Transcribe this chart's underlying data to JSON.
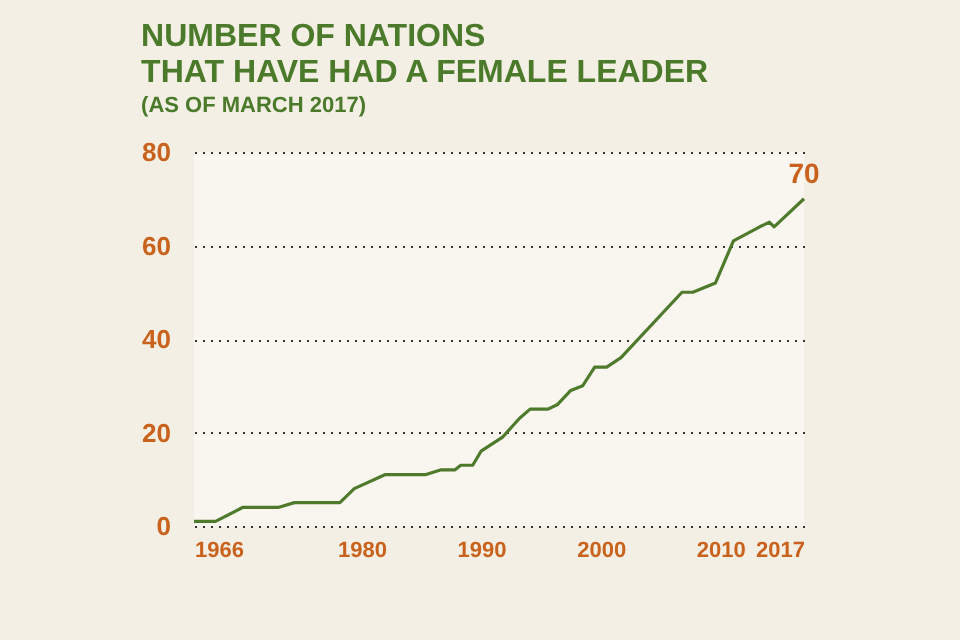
{
  "chart_data": {
    "type": "line",
    "title": "NUMBER OF NATIONS\nTHAT HAVE HAD A FEMALE LEADER",
    "subtitle": "(AS OF MARCH 2017)",
    "x": [
      1966,
      1967.8,
      1970.1,
      1973.1,
      1974.4,
      1978.2,
      1979.4,
      1982,
      1985.4,
      1986.6,
      1987.8,
      1988.3,
      1989.3,
      1990,
      1991.8,
      1993.2,
      1994.1,
      1995.6,
      1996.4,
      1997.5,
      1998.5,
      1999.5,
      2000.5,
      2001.7,
      2006.8,
      2007.7,
      2009.6,
      2011.1,
      2013.3,
      2014.1,
      2014.5,
      2017
    ],
    "series": [
      {
        "color": "#4f7a2c",
        "values": [
          1,
          1,
          4,
          4,
          5,
          5,
          8,
          11,
          11,
          12,
          12,
          13,
          13,
          16,
          19,
          23,
          25,
          25,
          26,
          29,
          30,
          34,
          34,
          36,
          50,
          50,
          52,
          61,
          64,
          65,
          64,
          70
        ]
      }
    ],
    "xlim": [
      1966,
      2017
    ],
    "xticks": [
      1966,
      1980,
      1990,
      2000,
      2010,
      2017
    ],
    "ylim": [
      0,
      80
    ],
    "yticks": [
      0,
      20,
      40,
      60,
      80
    ],
    "grid": "y",
    "marker": "none",
    "line_style": "solid",
    "annotations": [
      {
        "text": "70",
        "x": 2017,
        "y": 70
      }
    ]
  }
}
